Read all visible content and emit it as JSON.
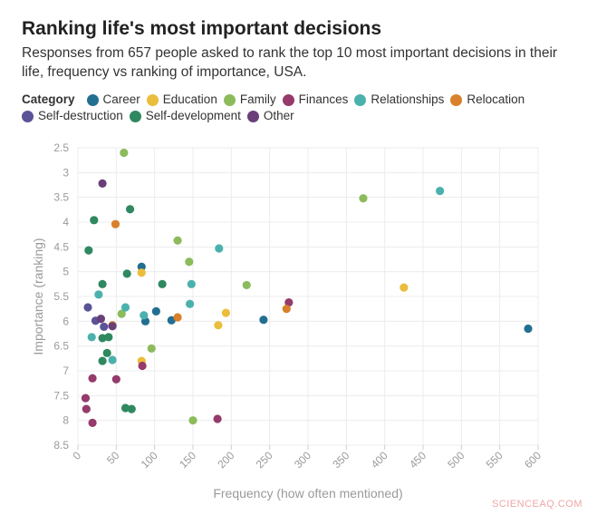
{
  "header": {
    "title": "Ranking life's most important decisions",
    "subtitle": "Responses from 657 people asked to rank the top 10 most important decisions in their life, frequency vs ranking of importance, USA."
  },
  "legend": {
    "title": "Category",
    "items": [
      {
        "label": "Career",
        "color": "#236f91"
      },
      {
        "label": "Education",
        "color": "#eabd3b"
      },
      {
        "label": "Family",
        "color": "#8cbb5c"
      },
      {
        "label": "Finances",
        "color": "#953a6b"
      },
      {
        "label": "Relationships",
        "color": "#4bb1ad"
      },
      {
        "label": "Relocation",
        "color": "#d8802b"
      },
      {
        "label": "Self-destruction",
        "color": "#5a5398"
      },
      {
        "label": "Self-development",
        "color": "#2f8860"
      },
      {
        "label": "Other",
        "color": "#6a3f79"
      }
    ]
  },
  "watermark": "SCIENCEAQ.COM",
  "chart_data": {
    "type": "scatter",
    "title": "Ranking life's most important decisions",
    "xlabel": "Frequency (how often mentioned)",
    "ylabel": "Importance (ranking)",
    "xlim": [
      0,
      600
    ],
    "ylim": [
      2.5,
      8.5
    ],
    "y_inverted": true,
    "x_ticks": [
      "0",
      "50",
      "100",
      "150",
      "200",
      "250",
      "300",
      "350",
      "400",
      "450",
      "500",
      "550",
      "600"
    ],
    "y_ticks": [
      "2.5",
      "3",
      "3.5",
      "4",
      "4.5",
      "5",
      "5.5",
      "6",
      "6.5",
      "7",
      "7.5",
      "8",
      "8.5"
    ],
    "grid": true,
    "series": [
      {
        "name": "Career",
        "color": "#236f91",
        "points": [
          [
            83,
            4.9
          ],
          [
            88,
            6.0
          ],
          [
            102,
            5.8
          ],
          [
            122,
            5.98
          ],
          [
            242,
            5.97
          ],
          [
            587,
            6.15
          ]
        ]
      },
      {
        "name": "Education",
        "color": "#eabd3b",
        "points": [
          [
            83,
            5.02
          ],
          [
            83,
            6.8
          ],
          [
            183,
            6.08
          ],
          [
            193,
            5.83
          ],
          [
            425,
            5.32
          ]
        ]
      },
      {
        "name": "Family",
        "color": "#8cbb5c",
        "points": [
          [
            60,
            2.6
          ],
          [
            57,
            5.85
          ],
          [
            96,
            6.55
          ],
          [
            130,
            4.37
          ],
          [
            145,
            4.8
          ],
          [
            150,
            8.0
          ],
          [
            220,
            5.27
          ],
          [
            372,
            3.52
          ]
        ]
      },
      {
        "name": "Finances",
        "color": "#953a6b",
        "points": [
          [
            10,
            7.55
          ],
          [
            11,
            7.77
          ],
          [
            19,
            7.15
          ],
          [
            19,
            8.05
          ],
          [
            50,
            7.17
          ],
          [
            84,
            6.9
          ],
          [
            182,
            7.97
          ],
          [
            275,
            5.62
          ]
        ]
      },
      {
        "name": "Relationships",
        "color": "#4bb1ad",
        "points": [
          [
            18,
            6.32
          ],
          [
            27,
            5.46
          ],
          [
            45,
            6.78
          ],
          [
            62,
            5.72
          ],
          [
            86,
            5.88
          ],
          [
            146,
            5.65
          ],
          [
            148,
            5.25
          ],
          [
            184,
            4.53
          ],
          [
            472,
            3.37
          ]
        ]
      },
      {
        "name": "Relocation",
        "color": "#d8802b",
        "points": [
          [
            49,
            4.04
          ],
          [
            45,
            6.08
          ],
          [
            130,
            5.92
          ],
          [
            272,
            5.75
          ]
        ]
      },
      {
        "name": "Self-destruction",
        "color": "#5a5398",
        "points": [
          [
            13,
            5.72
          ],
          [
            23,
            5.99
          ],
          [
            34,
            6.11
          ]
        ]
      },
      {
        "name": "Self-development",
        "color": "#2f8860",
        "points": [
          [
            14,
            4.57
          ],
          [
            21,
            3.96
          ],
          [
            32,
            6.34
          ],
          [
            32,
            5.25
          ],
          [
            38,
            6.64
          ],
          [
            40,
            6.32
          ],
          [
            32,
            6.8
          ],
          [
            62,
            7.75
          ],
          [
            64,
            5.04
          ],
          [
            68,
            3.74
          ],
          [
            70,
            7.77
          ],
          [
            110,
            5.25
          ]
        ]
      },
      {
        "name": "Other",
        "color": "#6a3f79",
        "points": [
          [
            32,
            3.22
          ],
          [
            30,
            5.95
          ],
          [
            45,
            6.1
          ]
        ]
      }
    ]
  }
}
